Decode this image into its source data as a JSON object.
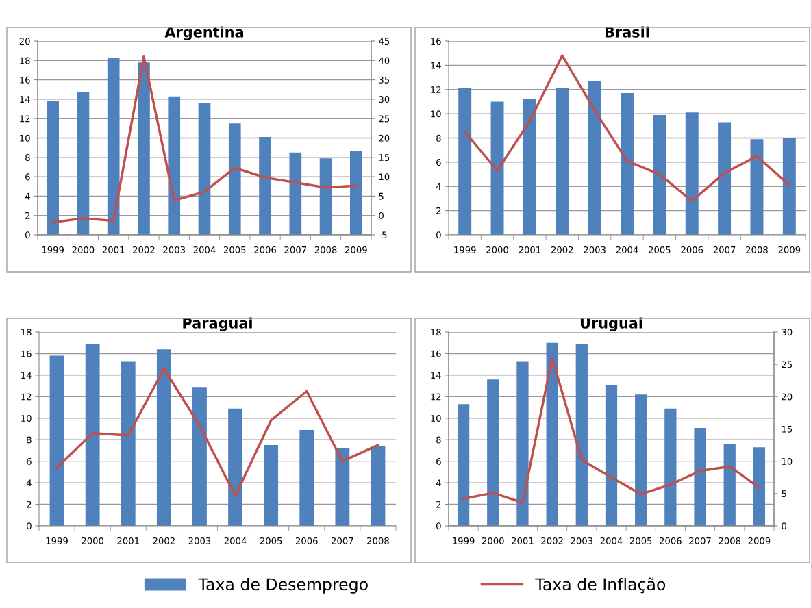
{
  "chart_data": [
    {
      "type": "bar",
      "title": "Argentina",
      "categories": [
        "1999",
        "2000",
        "2001",
        "2002",
        "2003",
        "2004",
        "2005",
        "2006",
        "2007",
        "2008",
        "2009"
      ],
      "series": [
        {
          "name": "Taxa de Desemprego",
          "color": "#4f81bd",
          "values": [
            13.8,
            14.7,
            18.3,
            17.8,
            14.3,
            13.6,
            11.5,
            10.1,
            8.5,
            7.9,
            8.7
          ]
        },
        {
          "name": "Taxa de Inflação",
          "type": "line",
          "axis": "y2",
          "color": "#c0504d",
          "values": [
            -1.8,
            -0.7,
            -1.4,
            41.0,
            3.9,
            6.1,
            12.3,
            9.8,
            8.5,
            7.2,
            7.7
          ]
        }
      ],
      "ylim": [
        0,
        20
      ],
      "yticks": [
        0,
        2,
        4,
        6,
        8,
        10,
        12,
        14,
        16,
        18,
        20
      ],
      "y2lim": [
        -5,
        45
      ],
      "y2ticks": [
        -5,
        0,
        5,
        10,
        15,
        20,
        25,
        30,
        35,
        40,
        45
      ],
      "grid": "y",
      "legend": "bottom"
    },
    {
      "type": "bar",
      "title": "Brasil",
      "categories": [
        "1999",
        "2000",
        "2001",
        "2002",
        "2003",
        "2004",
        "2005",
        "2006",
        "2007",
        "2008",
        "2009"
      ],
      "series": [
        {
          "name": "Taxa de Desemprego",
          "color": "#4f81bd",
          "values": [
            12.1,
            11.0,
            11.2,
            12.1,
            12.7,
            11.7,
            9.9,
            10.1,
            9.3,
            7.9,
            8.0
          ]
        },
        {
          "name": "Taxa de Inflação",
          "type": "line",
          "color": "#c0504d",
          "values": [
            8.5,
            5.3,
            9.4,
            14.8,
            10.3,
            6.1,
            5.0,
            2.8,
            5.1,
            6.5,
            4.1
          ]
        }
      ],
      "ylim": [
        0,
        16
      ],
      "yticks": [
        0,
        2,
        4,
        6,
        8,
        10,
        12,
        14,
        16
      ],
      "grid": "y"
    },
    {
      "type": "bar",
      "title": "Paraguai",
      "categories": [
        "1999",
        "2000",
        "2001",
        "2002",
        "2003",
        "2004",
        "2005",
        "2006",
        "2007",
        "2008"
      ],
      "series": [
        {
          "name": "Taxa de Desemprego",
          "color": "#4f81bd",
          "values": [
            15.8,
            16.9,
            15.3,
            16.4,
            12.9,
            10.9,
            7.5,
            8.9,
            7.2,
            7.4
          ]
        },
        {
          "name": "Taxa de Inflação",
          "type": "line",
          "color": "#c0504d",
          "values": [
            5.4,
            8.6,
            8.4,
            14.6,
            9.3,
            2.8,
            9.8,
            12.5,
            6.0,
            7.5
          ]
        }
      ],
      "ylim": [
        0,
        18
      ],
      "yticks": [
        0,
        2,
        4,
        6,
        8,
        10,
        12,
        14,
        16,
        18
      ],
      "grid": "y"
    },
    {
      "type": "bar",
      "title": "Uruguai",
      "categories": [
        "1999",
        "2000",
        "2001",
        "2002",
        "2003",
        "2004",
        "2005",
        "2006",
        "2007",
        "2008",
        "2009"
      ],
      "series": [
        {
          "name": "Taxa de Desemprego",
          "color": "#4f81bd",
          "values": [
            11.3,
            13.6,
            15.3,
            17.0,
            16.9,
            13.1,
            12.2,
            10.9,
            9.1,
            7.6,
            7.3
          ]
        },
        {
          "name": "Taxa de Inflação",
          "type": "line",
          "axis": "y2",
          "color": "#c0504d",
          "values": [
            4.2,
            5.1,
            3.6,
            26.0,
            10.2,
            7.5,
            4.9,
            6.4,
            8.5,
            9.2,
            5.9
          ]
        }
      ],
      "ylim": [
        0,
        18
      ],
      "yticks": [
        0,
        2,
        4,
        6,
        8,
        10,
        12,
        14,
        16,
        18
      ],
      "y2lim": [
        0,
        30
      ],
      "y2ticks": [
        0,
        5,
        10,
        15,
        20,
        25,
        30
      ],
      "grid": "y"
    }
  ]
}
